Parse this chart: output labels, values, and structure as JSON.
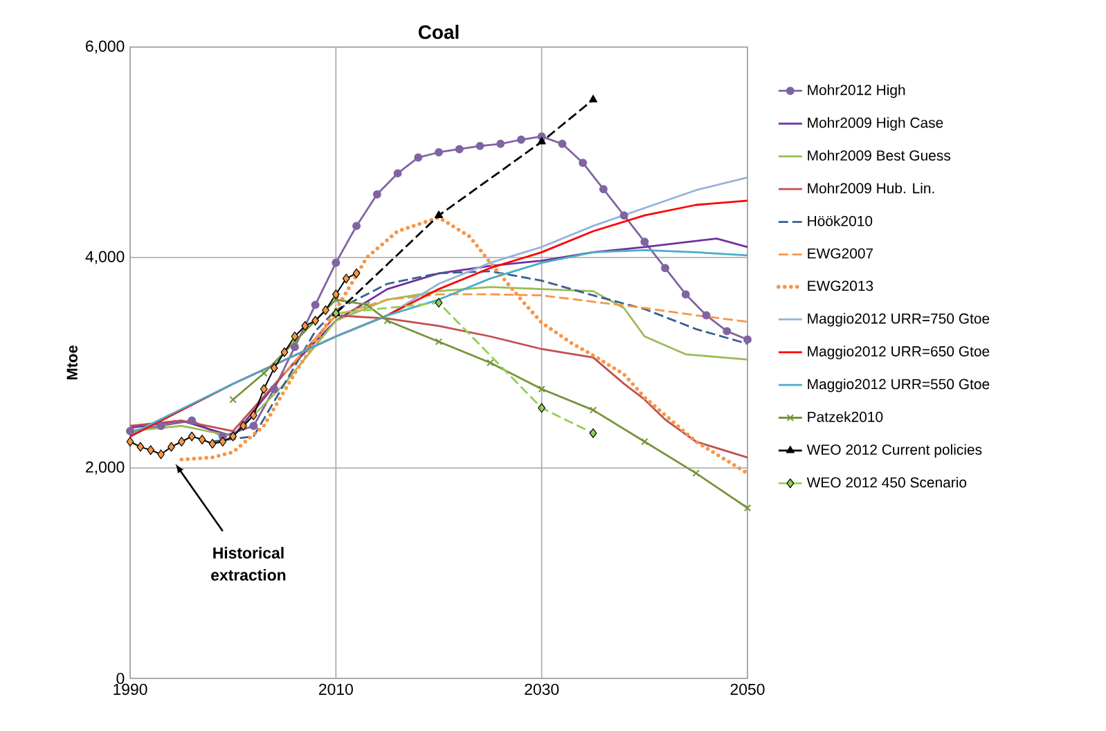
{
  "chart_data": {
    "type": "line",
    "title": "Coal",
    "ylabel": "Mtoe",
    "xlim": [
      1990,
      2050
    ],
    "ylim": [
      0,
      6000
    ],
    "xticks": [
      1990,
      2010,
      2030,
      2050
    ],
    "yticks": [
      0,
      {
        "value": 2000,
        "label": "2,000"
      },
      {
        "value": 4000,
        "label": "4,000"
      },
      {
        "value": 6000,
        "label": "6,000"
      }
    ],
    "grid": true,
    "legend": "right",
    "annotations": [
      "Historical extraction"
    ],
    "series": [
      {
        "name": "Mohr2012 High",
        "color": "#8064a2",
        "marker": "circle",
        "x": [
          1990,
          1993,
          1996,
          1999,
          2002,
          2004,
          2006,
          2008,
          2010,
          2012,
          2014,
          2016,
          2018,
          2020,
          2022,
          2024,
          2026,
          2028,
          2030,
          2032,
          2034,
          2036,
          2038,
          2040,
          2042,
          2044,
          2046,
          2048,
          2050
        ],
        "values": [
          2350,
          2400,
          2450,
          2300,
          2400,
          2750,
          3150,
          3550,
          3950,
          4300,
          4600,
          4800,
          4950,
          5000,
          5030,
          5060,
          5080,
          5120,
          5150,
          5080,
          4900,
          4650,
          4400,
          4150,
          3900,
          3650,
          3450,
          3300,
          3220
        ]
      },
      {
        "name": "Mohr2009 High Case",
        "color": "#7030a0",
        "x": [
          1990,
          1995,
          2000,
          2005,
          2010,
          2015,
          2020,
          2025,
          2030,
          2035,
          2040,
          2047,
          2050
        ],
        "values": [
          2380,
          2450,
          2300,
          2900,
          3400,
          3700,
          3850,
          3920,
          3970,
          4050,
          4100,
          4180,
          4100
        ]
      },
      {
        "name": "Mohr2009 Best Guess",
        "color": "#9bbb59",
        "x": [
          1990,
          1995,
          2000,
          2005,
          2010,
          2015,
          2020,
          2025,
          2030,
          2035,
          2038,
          2040,
          2044,
          2050
        ],
        "values": [
          2350,
          2400,
          2300,
          2800,
          3400,
          3600,
          3680,
          3720,
          3700,
          3680,
          3520,
          3250,
          3080,
          3030
        ]
      },
      {
        "name": "Mohr2009 Hub. Lin.",
        "color": "#c0504d",
        "x": [
          1990,
          1995,
          2000,
          2005,
          2010,
          2015,
          2020,
          2025,
          2030,
          2035,
          2038,
          2040,
          2042,
          2045,
          2050
        ],
        "values": [
          2400,
          2450,
          2350,
          2900,
          3450,
          3420,
          3350,
          3250,
          3130,
          3050,
          2800,
          2650,
          2460,
          2250,
          2100
        ]
      },
      {
        "name": "Höök2010",
        "color": "#376092",
        "line_style": "dashed",
        "x": [
          1998,
          2002,
          2005,
          2008,
          2010,
          2015,
          2020,
          2025,
          2030,
          2035,
          2040,
          2045,
          2050
        ],
        "values": [
          2250,
          2300,
          2800,
          3300,
          3500,
          3750,
          3850,
          3870,
          3780,
          3640,
          3510,
          3320,
          3180
        ]
      },
      {
        "name": "EWG2007",
        "color": "#f79646",
        "line_style": "dashed",
        "x": [
          2005,
          2010,
          2015,
          2020,
          2025,
          2030,
          2035,
          2040,
          2045,
          2050
        ],
        "values": [
          2900,
          3450,
          3600,
          3650,
          3650,
          3640,
          3580,
          3520,
          3450,
          3390
        ]
      },
      {
        "name": "EWG2013",
        "color": "#f79646",
        "line_style": "dotted",
        "x": [
          1995,
          1998,
          2000,
          2003,
          2006,
          2010,
          2013,
          2016,
          2020,
          2023,
          2025,
          2028,
          2030,
          2033,
          2035,
          2038,
          2040,
          2045,
          2050
        ],
        "values": [
          2080,
          2100,
          2150,
          2400,
          2900,
          3500,
          4000,
          4250,
          4380,
          4200,
          3950,
          3600,
          3380,
          3180,
          3070,
          2890,
          2670,
          2250,
          1950
        ]
      },
      {
        "name": "Maggio2012 URR=750 Gtoe",
        "color": "#95b3d7",
        "x": [
          1990,
          2000,
          2010,
          2015,
          2020,
          2025,
          2030,
          2035,
          2040,
          2045,
          2050
        ],
        "values": [
          2300,
          2800,
          3250,
          3450,
          3750,
          3950,
          4100,
          4300,
          4470,
          4640,
          4760
        ]
      },
      {
        "name": "Maggio2012 URR=650 Gtoe",
        "color": "#ff0000",
        "x": [
          1990,
          2000,
          2010,
          2015,
          2020,
          2025,
          2030,
          2035,
          2040,
          2045,
          2050
        ],
        "values": [
          2300,
          2800,
          3250,
          3450,
          3700,
          3900,
          4050,
          4250,
          4400,
          4500,
          4540
        ]
      },
      {
        "name": "Maggio2012 URR=550 Gtoe",
        "color": "#4bacc6",
        "x": [
          1990,
          2000,
          2010,
          2015,
          2020,
          2025,
          2030,
          2035,
          2040,
          2045,
          2050
        ],
        "values": [
          2320,
          2800,
          3250,
          3450,
          3600,
          3800,
          3950,
          4050,
          4070,
          4050,
          4020
        ]
      },
      {
        "name": "Patzek2010",
        "color": "#77933c",
        "marker": "cross",
        "x": [
          2000,
          2003,
          2006,
          2010,
          2013,
          2015,
          2020,
          2025,
          2030,
          2035,
          2040,
          2045,
          2050
        ],
        "values": [
          2650,
          2900,
          3200,
          3600,
          3550,
          3400,
          3200,
          3000,
          2750,
          2550,
          2250,
          1950,
          1620
        ]
      },
      {
        "name": "WEO 2012 Current policies",
        "color": "#000000",
        "marker": "triangle",
        "line_style": "dashed",
        "x": [
          2010,
          2020,
          2030,
          2035
        ],
        "values": [
          3470,
          4400,
          5100,
          5500
        ]
      },
      {
        "name": "WEO 2012 450 Scenario",
        "color": "#92d050",
        "marker": "diamond",
        "line_style": "dashed",
        "x": [
          2010,
          2020,
          2030,
          2035
        ],
        "values": [
          3470,
          3570,
          2570,
          2330
        ]
      },
      {
        "color": "#f79646",
        "marker": "diamond",
        "x": [
          1990,
          1991,
          1992,
          1993,
          1994,
          1995,
          1996,
          1997,
          1998,
          1999,
          2000,
          2001,
          2002,
          2003,
          2004,
          2005,
          2006,
          2007,
          2008,
          2009,
          2010,
          2011,
          2012
        ],
        "values": [
          2250,
          2200,
          2170,
          2130,
          2200,
          2250,
          2300,
          2270,
          2230,
          2250,
          2300,
          2400,
          2500,
          2750,
          2950,
          3100,
          3250,
          3350,
          3400,
          3500,
          3650,
          3800,
          3850
        ]
      }
    ]
  }
}
